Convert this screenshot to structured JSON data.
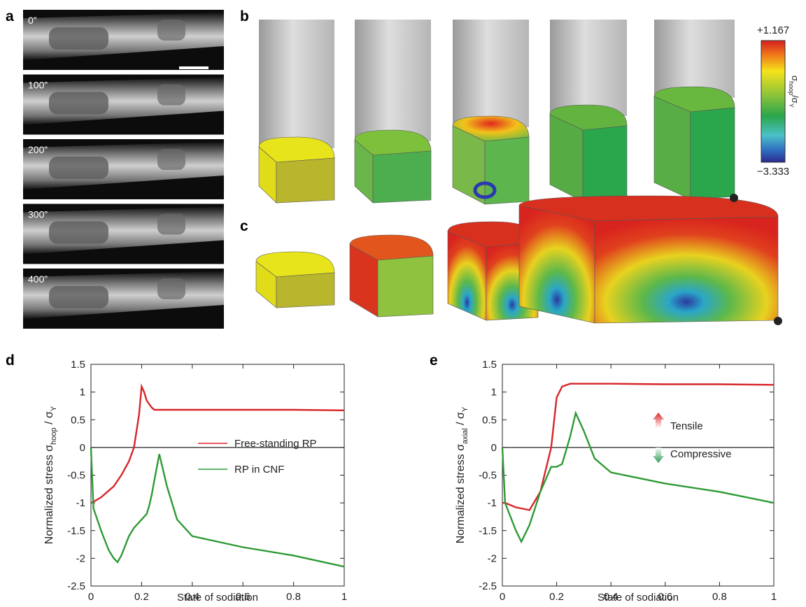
{
  "panel_labels": {
    "a": "a",
    "b": "b",
    "c": "c",
    "d": "d",
    "e": "e"
  },
  "time_labels": [
    "0”",
    "100”",
    "200”",
    "300”",
    "400”"
  ],
  "colorbar": {
    "max_label": "+1.167",
    "min_label": "−3.333",
    "label": [
      "σ",
      "hoop",
      "/σ",
      "Y"
    ]
  },
  "chart_data": [
    {
      "type": "line",
      "ylabel": [
        "Normalized stress σ",
        "hoop",
        " / σ",
        "Y"
      ],
      "xlabel": "State of sodiation",
      "x": [
        0,
        0.01,
        0.04,
        0.07,
        0.09,
        0.105,
        0.12,
        0.15,
        0.17,
        0.19,
        0.2,
        0.21,
        0.22,
        0.23,
        0.24,
        0.25,
        0.27,
        0.3,
        0.34,
        0.4,
        0.6,
        0.8,
        1.0
      ],
      "series": [
        {
          "name": "Free-standing RP",
          "color": "#d8262a",
          "values": [
            -1.0,
            -0.98,
            -0.9,
            -0.78,
            -0.7,
            -0.6,
            -0.5,
            -0.25,
            0.0,
            0.6,
            1.1,
            1.0,
            0.85,
            0.78,
            0.72,
            0.68,
            0.68,
            0.68,
            0.68,
            0.68,
            0.68,
            0.68,
            0.67
          ]
        },
        {
          "name": "RP in CNF",
          "color": "#2f9a35",
          "values": [
            0,
            -1.1,
            -1.5,
            -1.85,
            -2.0,
            -2.07,
            -1.95,
            -1.6,
            -1.45,
            -1.35,
            -1.3,
            -1.25,
            -1.2,
            -1.05,
            -0.85,
            -0.6,
            -0.12,
            -0.7,
            -1.3,
            -1.6,
            -1.8,
            -1.95,
            -2.15
          ]
        }
      ],
      "xlim": [
        0,
        1
      ],
      "xticks": [
        0,
        0.2,
        0.4,
        0.6,
        0.8,
        1
      ],
      "ylim": [
        -2.5,
        1.5
      ],
      "yticks": [
        1.5,
        1,
        0.5,
        0,
        -0.5,
        -1,
        -1.5,
        -2,
        -2.5
      ],
      "legend": true
    },
    {
      "type": "line",
      "ylabel": [
        "Normalized stress σ",
        "axial",
        " / σ",
        "Y"
      ],
      "xlabel": "State of sodiation",
      "x": [
        0,
        0.01,
        0.05,
        0.07,
        0.1,
        0.14,
        0.18,
        0.2,
        0.22,
        0.25,
        0.27,
        0.3,
        0.34,
        0.4,
        0.6,
        0.8,
        1.0
      ],
      "series": [
        {
          "color": "#d8262a",
          "values": [
            -1.0,
            -1.0,
            -1.08,
            -1.1,
            -1.13,
            -0.8,
            0.0,
            0.9,
            1.1,
            1.15,
            1.15,
            1.15,
            1.15,
            1.15,
            1.14,
            1.14,
            1.13
          ]
        },
        {
          "color": "#2f9a35",
          "values": [
            0,
            -1.0,
            -1.5,
            -1.7,
            -1.4,
            -0.8,
            -0.35,
            -0.35,
            -0.3,
            0.2,
            0.62,
            0.3,
            -0.2,
            -0.45,
            -0.65,
            -0.8,
            -1.0
          ]
        }
      ],
      "xlim": [
        0,
        1
      ],
      "xticks": [
        0,
        0.2,
        0.4,
        0.6,
        0.8,
        1
      ],
      "ylim": [
        -2.5,
        1.5
      ],
      "yticks": [
        1.5,
        1,
        0.5,
        0,
        -0.5,
        -1,
        -1.5,
        -2,
        -2.5
      ],
      "annotations": [
        "Tensile",
        "Compressive"
      ],
      "legend": false
    }
  ]
}
